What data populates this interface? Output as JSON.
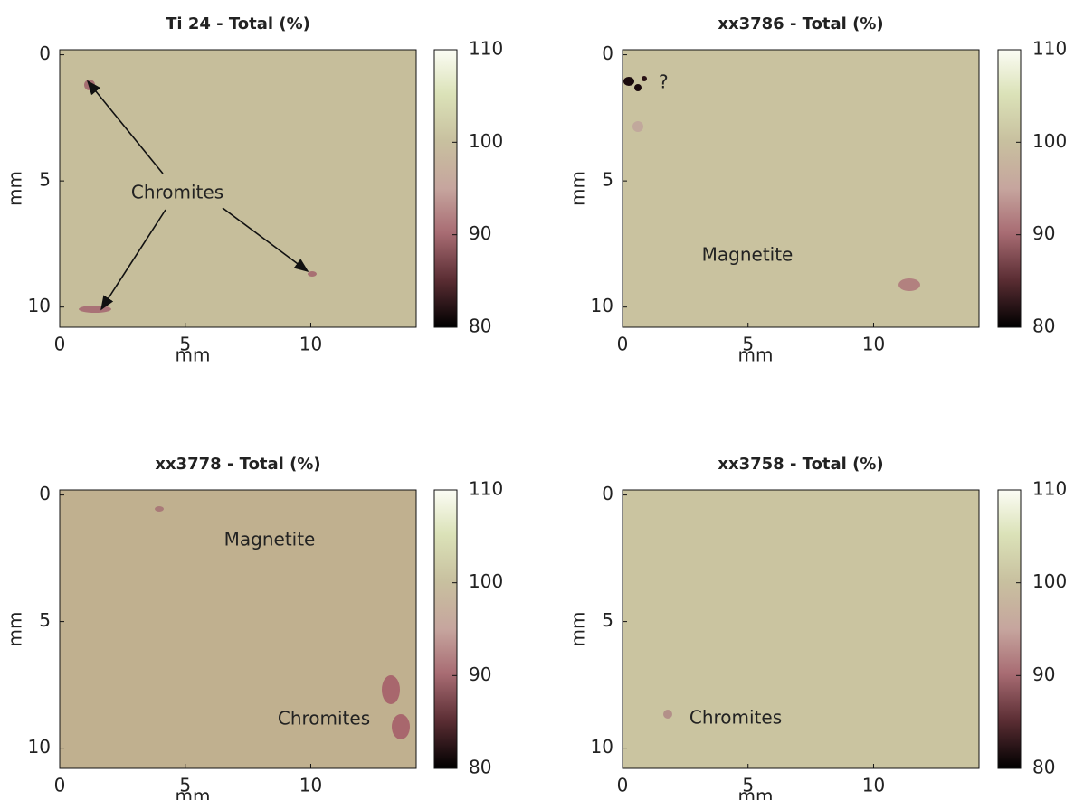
{
  "chart_data": [
    {
      "type": "heatmap",
      "title": "Ti 24 - Total (%)",
      "xlabel": "mm",
      "ylabel": "mm",
      "color": "#c6be9b",
      "xlim": [
        0,
        14.2
      ],
      "xticks": [
        0,
        5,
        10
      ],
      "ylim": [
        -0.2,
        10.8
      ],
      "yticks": [
        0,
        5,
        10
      ],
      "clim": [
        80,
        110
      ],
      "cticks": [
        80,
        90,
        100,
        110
      ],
      "annotations": [
        "Chromites"
      ]
    },
    {
      "type": "heatmap",
      "title": "xx3786 - Total  (%)",
      "xlabel": "mm",
      "ylabel": "mm",
      "color": "#c9c29f",
      "xlim": [
        0,
        14.2
      ],
      "xticks": [
        0,
        5,
        10
      ],
      "ylim": [
        -0.2,
        10.8
      ],
      "yticks": [
        0,
        5,
        10
      ],
      "clim": [
        80,
        110
      ],
      "cticks": [
        80,
        90,
        100,
        110
      ],
      "annotations": [
        "?",
        "Magnetite"
      ]
    },
    {
      "type": "heatmap",
      "title": "xx3778 - Total  (%)",
      "xlabel": "mm",
      "ylabel": "mm",
      "color": "#c0b08f",
      "xlim": [
        0,
        14.2
      ],
      "xticks": [
        0,
        5,
        10
      ],
      "ylim": [
        -0.2,
        10.8
      ],
      "yticks": [
        0,
        5,
        10
      ],
      "clim": [
        80,
        110
      ],
      "cticks": [
        80,
        90,
        100,
        110
      ],
      "annotations": [
        "Magnetite",
        "Chromites"
      ]
    },
    {
      "type": "heatmap",
      "title": "xx3758 - Total  (%)",
      "xlabel": "mm",
      "ylabel": "mm",
      "color": "#cac4a0",
      "xlim": [
        0,
        14.2
      ],
      "xticks": [
        0,
        5,
        10
      ],
      "ylim": [
        -0.2,
        10.8
      ],
      "yticks": [
        0,
        5,
        10
      ],
      "clim": [
        80,
        110
      ],
      "cticks": [
        80,
        90,
        100,
        110
      ],
      "annotations": [
        "Chromites"
      ]
    }
  ]
}
